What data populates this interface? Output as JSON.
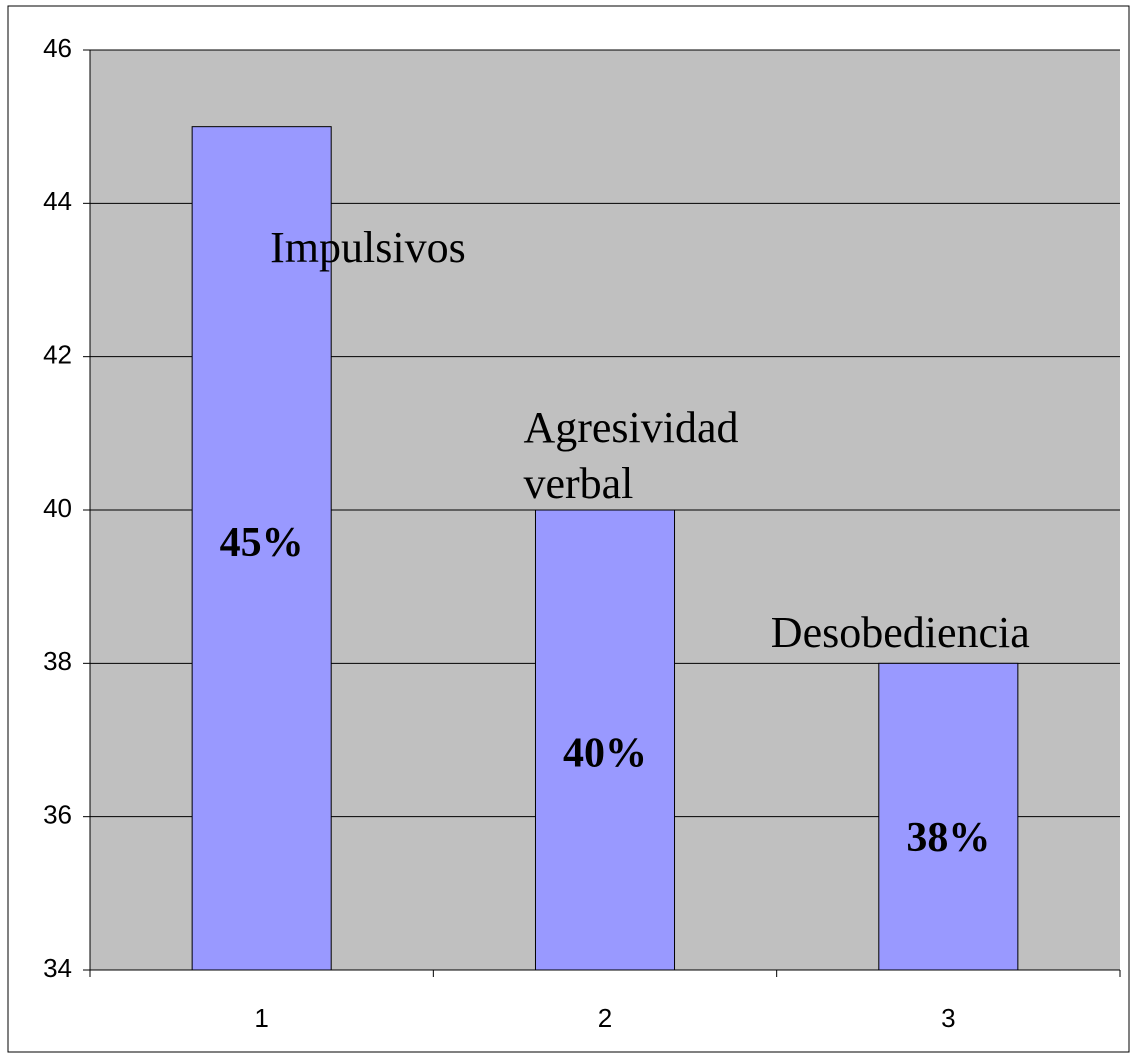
{
  "chart_data": {
    "type": "bar",
    "categories": [
      "1",
      "2",
      "3"
    ],
    "values": [
      45,
      40,
      38
    ],
    "value_labels": [
      "45%",
      "40%",
      "38%"
    ],
    "annotations": [
      "Impulsivos",
      "Agresividad verbal",
      "Desobediencia"
    ],
    "color": "#9999ff",
    "ylim": [
      34,
      46
    ],
    "yticks": [
      34,
      36,
      38,
      40,
      42,
      44,
      46
    ],
    "grid": true
  }
}
